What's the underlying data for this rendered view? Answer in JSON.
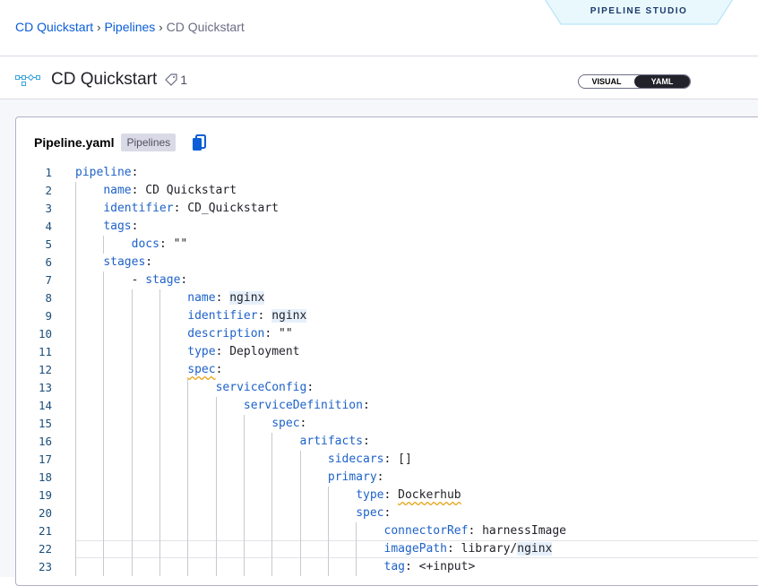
{
  "header": {
    "studio_label": "PIPELINE STUDIO",
    "breadcrumbs": [
      "CD Quickstart",
      "Pipelines",
      "CD Quickstart"
    ],
    "title": "CD Quickstart",
    "tag_count": "1",
    "view_toggle": {
      "options": [
        "VISUAL",
        "YAML"
      ],
      "selected": "YAML"
    }
  },
  "editor": {
    "file_name": "Pipeline.yaml",
    "badge": "Pipelines",
    "current_line": 22,
    "lines": [
      {
        "n": "1",
        "indent": 0,
        "key": "pipeline",
        "value": ""
      },
      {
        "n": "2",
        "indent": 1,
        "key": "name",
        "value": "CD Quickstart"
      },
      {
        "n": "3",
        "indent": 1,
        "key": "identifier",
        "value": "CD_Quickstart"
      },
      {
        "n": "4",
        "indent": 1,
        "key": "tags",
        "value": ""
      },
      {
        "n": "5",
        "indent": 2,
        "key": "docs",
        "value": "\"\""
      },
      {
        "n": "6",
        "indent": 1,
        "key": "stages",
        "value": ""
      },
      {
        "n": "7",
        "indent": 2,
        "dash": true,
        "key": "stage",
        "value": ""
      },
      {
        "n": "8",
        "indent": 4,
        "key": "name",
        "value": "nginx",
        "hl": true
      },
      {
        "n": "9",
        "indent": 4,
        "key": "identifier",
        "value": "nginx",
        "hl": true
      },
      {
        "n": "10",
        "indent": 4,
        "key": "description",
        "value": "\"\""
      },
      {
        "n": "11",
        "indent": 4,
        "key": "type",
        "value": "Deployment"
      },
      {
        "n": "12",
        "indent": 4,
        "key": "spec",
        "value": "",
        "squig_key": true
      },
      {
        "n": "13",
        "indent": 5,
        "key": "serviceConfig",
        "value": ""
      },
      {
        "n": "14",
        "indent": 6,
        "key": "serviceDefinition",
        "value": ""
      },
      {
        "n": "15",
        "indent": 7,
        "key": "spec",
        "value": ""
      },
      {
        "n": "16",
        "indent": 8,
        "key": "artifacts",
        "value": ""
      },
      {
        "n": "17",
        "indent": 9,
        "key": "sidecars",
        "value": "[]"
      },
      {
        "n": "18",
        "indent": 9,
        "key": "primary",
        "value": ""
      },
      {
        "n": "19",
        "indent": 10,
        "key": "type",
        "value": "Dockerhub",
        "squig_value": true
      },
      {
        "n": "20",
        "indent": 10,
        "key": "spec",
        "value": ""
      },
      {
        "n": "21",
        "indent": 11,
        "key": "connectorRef",
        "value": "harnessImage"
      },
      {
        "n": "22",
        "indent": 11,
        "key": "imagePath",
        "value": "library/",
        "value_hl": "nginx"
      },
      {
        "n": "23",
        "indent": 11,
        "key": "tag",
        "value": "<+input>"
      }
    ]
  },
  "colors": {
    "key": "#1e62c9",
    "link": "#0b5ed7",
    "copy_icon": "#0b5ed7"
  }
}
